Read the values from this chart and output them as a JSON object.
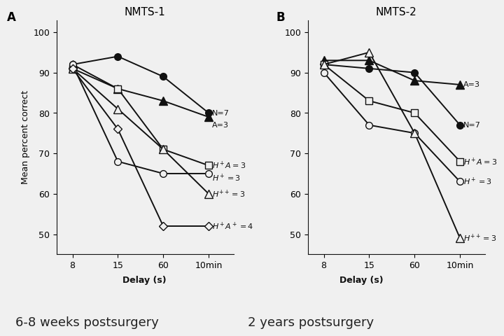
{
  "panel_A": {
    "title": "NMTS-1",
    "x_positions": [
      0,
      1,
      2,
      3
    ],
    "x_labels": [
      "8",
      "15",
      "60",
      "10min"
    ],
    "series": [
      {
        "label": "N=7",
        "marker": "o",
        "filled": true,
        "y": [
          92,
          94,
          89,
          80
        ]
      },
      {
        "label": "A=3",
        "marker": "^",
        "filled": true,
        "y": [
          92,
          86,
          83,
          79
        ]
      },
      {
        "label": "H+A=3",
        "marker": "s",
        "filled": false,
        "y": [
          91,
          86,
          71,
          67
        ]
      },
      {
        "label": "H+=3",
        "marker": "o",
        "filled": false,
        "y": [
          92,
          68,
          65,
          65
        ]
      },
      {
        "label": "H++=3",
        "marker": "^",
        "filled": false,
        "y": [
          91,
          81,
          71,
          60
        ]
      },
      {
        "label": "H+A+=4",
        "marker": "D",
        "filled": false,
        "y": [
          91,
          76,
          52,
          52
        ]
      }
    ],
    "annots": [
      {
        "y": 80,
        "text": "N=7"
      },
      {
        "y": 77,
        "text": "A=3"
      },
      {
        "y": 67,
        "text": "$H^+A=3$"
      },
      {
        "y": 64,
        "text": "$H^+=3$"
      },
      {
        "y": 60,
        "text": "$H^{++}=3$"
      },
      {
        "y": 52,
        "text": "$H^+A^+=4$"
      }
    ]
  },
  "panel_B": {
    "title": "NMTS-2",
    "x_positions": [
      0,
      1,
      2,
      3
    ],
    "x_labels": [
      "8",
      "15",
      "60",
      "10min"
    ],
    "series": [
      {
        "label": "N=7",
        "marker": "o",
        "filled": true,
        "y": [
          92,
          91,
          90,
          77
        ]
      },
      {
        "label": "A=3",
        "marker": "^",
        "filled": true,
        "y": [
          93,
          93,
          88,
          87
        ]
      },
      {
        "label": "H+A=3",
        "marker": "s",
        "filled": false,
        "y": [
          92,
          83,
          80,
          68
        ]
      },
      {
        "label": "H+=3",
        "marker": "o",
        "filled": false,
        "y": [
          90,
          77,
          75,
          63
        ]
      },
      {
        "label": "H++=3",
        "marker": "^",
        "filled": false,
        "y": [
          92,
          95,
          75,
          49
        ]
      }
    ],
    "annots": [
      {
        "y": 87,
        "text": "A=3"
      },
      {
        "y": 77,
        "text": "N=7"
      },
      {
        "y": 68,
        "text": "$H^+A=3$"
      },
      {
        "y": 63,
        "text": "$H^+=3$"
      },
      {
        "y": 49,
        "text": "$H^{++}=3$"
      }
    ]
  },
  "ylim": [
    45,
    103
  ],
  "yticks": [
    50,
    60,
    70,
    80,
    90,
    100
  ],
  "ylabel": "Mean percent correct",
  "xlabel": "Delay (s)",
  "label_A": "A",
  "label_B": "B",
  "caption_left": "6-8 weeks postsurgery",
  "caption_right": "2 years postsurgery",
  "bg_color": "#f0f0f0",
  "line_color": "#111111"
}
